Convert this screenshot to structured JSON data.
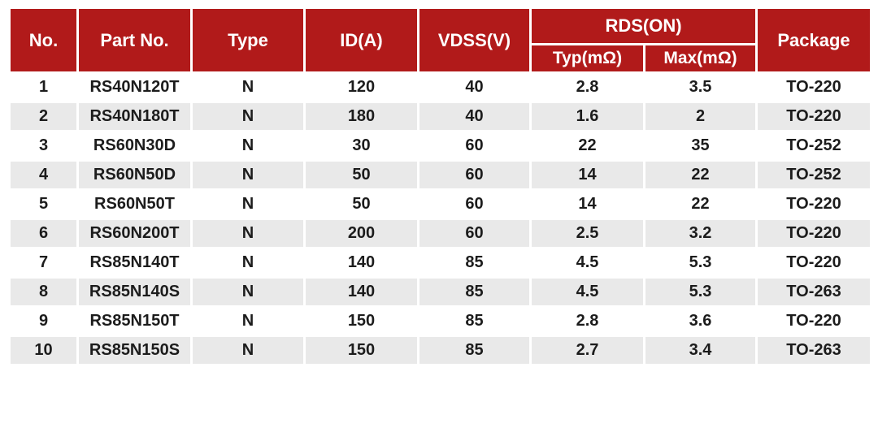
{
  "colors": {
    "header_bg": "#b11a1a",
    "header_text": "#ffffff",
    "row_alt_bg": "#e9e9e9",
    "body_text": "#1c1c1c"
  },
  "chart_data": {
    "type": "table",
    "group_header": {
      "label": "RDS(ON)",
      "spans_columns": [
        "Typ(mΩ)",
        "Max(mΩ)"
      ]
    },
    "columns": [
      "No.",
      "Part No.",
      "Type",
      "ID(A)",
      "VDSS(V)",
      "Typ(mΩ)",
      "Max(mΩ)",
      "Package"
    ],
    "rows": [
      [
        "1",
        "RS40N120T",
        "N",
        "120",
        "40",
        "2.8",
        "3.5",
        "TO-220"
      ],
      [
        "2",
        "RS40N180T",
        "N",
        "180",
        "40",
        "1.6",
        "2",
        "TO-220"
      ],
      [
        "3",
        "RS60N30D",
        "N",
        "30",
        "60",
        "22",
        "35",
        "TO-252"
      ],
      [
        "4",
        "RS60N50D",
        "N",
        "50",
        "60",
        "14",
        "22",
        "TO-252"
      ],
      [
        "5",
        "RS60N50T",
        "N",
        "50",
        "60",
        "14",
        "22",
        "TO-220"
      ],
      [
        "6",
        "RS60N200T",
        "N",
        "200",
        "60",
        "2.5",
        "3.2",
        "TO-220"
      ],
      [
        "7",
        "RS85N140T",
        "N",
        "140",
        "85",
        "4.5",
        "5.3",
        "TO-220"
      ],
      [
        "8",
        "RS85N140S",
        "N",
        "140",
        "85",
        "4.5",
        "5.3",
        "TO-263"
      ],
      [
        "9",
        "RS85N150T",
        "N",
        "150",
        "85",
        "2.8",
        "3.6",
        "TO-220"
      ],
      [
        "10",
        "RS85N150S",
        "N",
        "150",
        "85",
        "2.7",
        "3.4",
        "TO-263"
      ]
    ]
  }
}
